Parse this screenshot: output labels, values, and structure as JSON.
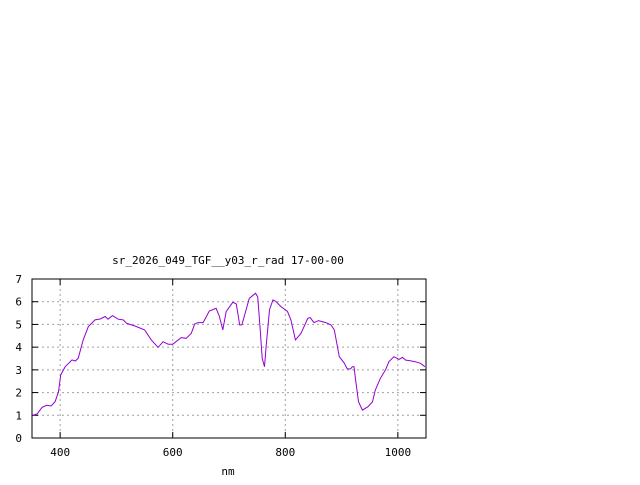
{
  "chart_data": {
    "type": "line",
    "title": "sr_2026_049_TGF__y03_r_rad 17-00-00",
    "xlabel": "nm",
    "ylabel": "",
    "xlim": [
      350,
      1050
    ],
    "ylim": [
      0,
      7
    ],
    "xticks": [
      400,
      600,
      800,
      1000
    ],
    "yticks": [
      0,
      1,
      2,
      3,
      4,
      5,
      6,
      7
    ],
    "grid": true,
    "line_color": "#9400d3",
    "grid_color": "#a0a0a0",
    "series": [
      {
        "x": [
          350,
          359,
          368,
          376,
          384,
          391,
          397,
          401,
          409,
          421,
          427,
          432,
          441,
          450,
          462,
          471,
          480,
          485,
          493,
          503,
          512,
          518,
          533,
          550,
          562,
          574,
          583,
          592,
          600,
          615,
          624,
          633,
          639,
          645,
          654,
          665,
          677,
          683,
          689,
          695,
          707,
          713,
          719,
          723,
          736,
          747,
          751,
          755,
          759,
          763,
          766,
          772,
          778,
          783,
          792,
          804,
          810,
          818,
          828,
          840,
          844,
          851,
          859,
          872,
          881,
          887,
          896,
          905,
          910,
          916,
          919,
          922,
          925,
          930,
          937,
          947,
          955,
          960,
          969,
          978,
          984,
          993,
          1002,
          1008,
          1014,
          1022,
          1031,
          1040,
          1048
        ],
        "y": [
          0.98,
          1.06,
          1.35,
          1.44,
          1.41,
          1.6,
          2.04,
          2.78,
          3.14,
          3.44,
          3.39,
          3.51,
          4.32,
          4.9,
          5.2,
          5.24,
          5.35,
          5.23,
          5.39,
          5.23,
          5.2,
          5.05,
          4.93,
          4.76,
          4.32,
          3.99,
          4.24,
          4.13,
          4.13,
          4.42,
          4.39,
          4.61,
          5.02,
          5.08,
          5.08,
          5.59,
          5.71,
          5.35,
          4.76,
          5.57,
          5.98,
          5.9,
          4.98,
          4.98,
          6.15,
          6.37,
          6.22,
          4.9,
          3.51,
          3.14,
          4.02,
          5.64,
          6.08,
          6.02,
          5.79,
          5.57,
          5.2,
          4.32,
          4.61,
          5.27,
          5.3,
          5.08,
          5.17,
          5.08,
          4.98,
          4.76,
          3.58,
          3.29,
          3.04,
          3.04,
          3.14,
          3.14,
          2.56,
          1.6,
          1.23,
          1.38,
          1.6,
          2.11,
          2.63,
          3.0,
          3.36,
          3.58,
          3.46,
          3.55,
          3.43,
          3.4,
          3.36,
          3.29,
          3.14
        ]
      }
    ]
  }
}
